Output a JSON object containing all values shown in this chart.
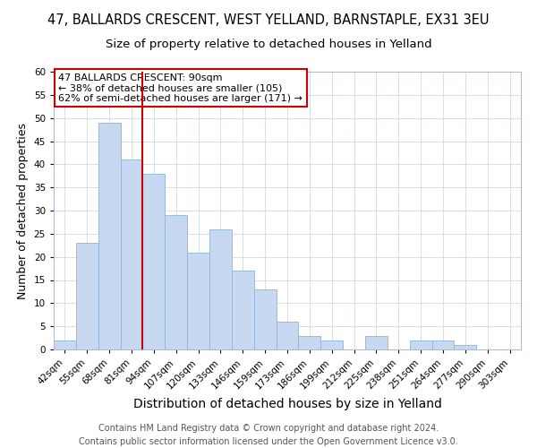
{
  "title": "47, BALLARDS CRESCENT, WEST YELLAND, BARNSTAPLE, EX31 3EU",
  "subtitle": "Size of property relative to detached houses in Yelland",
  "xlabel": "Distribution of detached houses by size in Yelland",
  "ylabel": "Number of detached properties",
  "footer_line1": "Contains HM Land Registry data © Crown copyright and database right 2024.",
  "footer_line2": "Contains public sector information licensed under the Open Government Licence v3.0.",
  "bin_labels": [
    "42sqm",
    "55sqm",
    "68sqm",
    "81sqm",
    "94sqm",
    "107sqm",
    "120sqm",
    "133sqm",
    "146sqm",
    "159sqm",
    "173sqm",
    "186sqm",
    "199sqm",
    "212sqm",
    "225sqm",
    "238sqm",
    "251sqm",
    "264sqm",
    "277sqm",
    "290sqm",
    "303sqm"
  ],
  "bar_heights": [
    2,
    23,
    49,
    41,
    38,
    29,
    21,
    26,
    17,
    13,
    6,
    3,
    2,
    0,
    3,
    0,
    2,
    2,
    1,
    0,
    0
  ],
  "bar_color": "#c6d9f0",
  "bar_edge_color": "#8fb4d9",
  "grid_color": "#d0d8e8",
  "vline_color": "#cc0000",
  "annotation_line1": "47 BALLARDS CRESCENT: 90sqm",
  "annotation_line2": "← 38% of detached houses are smaller (105)",
  "annotation_line3": "62% of semi-detached houses are larger (171) →",
  "annotation_box_edge_color": "#cc0000",
  "annotation_box_face_color": "white",
  "ylim": [
    0,
    60
  ],
  "yticks": [
    0,
    5,
    10,
    15,
    20,
    25,
    30,
    35,
    40,
    45,
    50,
    55,
    60
  ],
  "title_fontsize": 10.5,
  "subtitle_fontsize": 9.5,
  "xlabel_fontsize": 10,
  "ylabel_fontsize": 9,
  "tick_fontsize": 7.5,
  "annotation_fontsize": 8,
  "footer_fontsize": 7
}
